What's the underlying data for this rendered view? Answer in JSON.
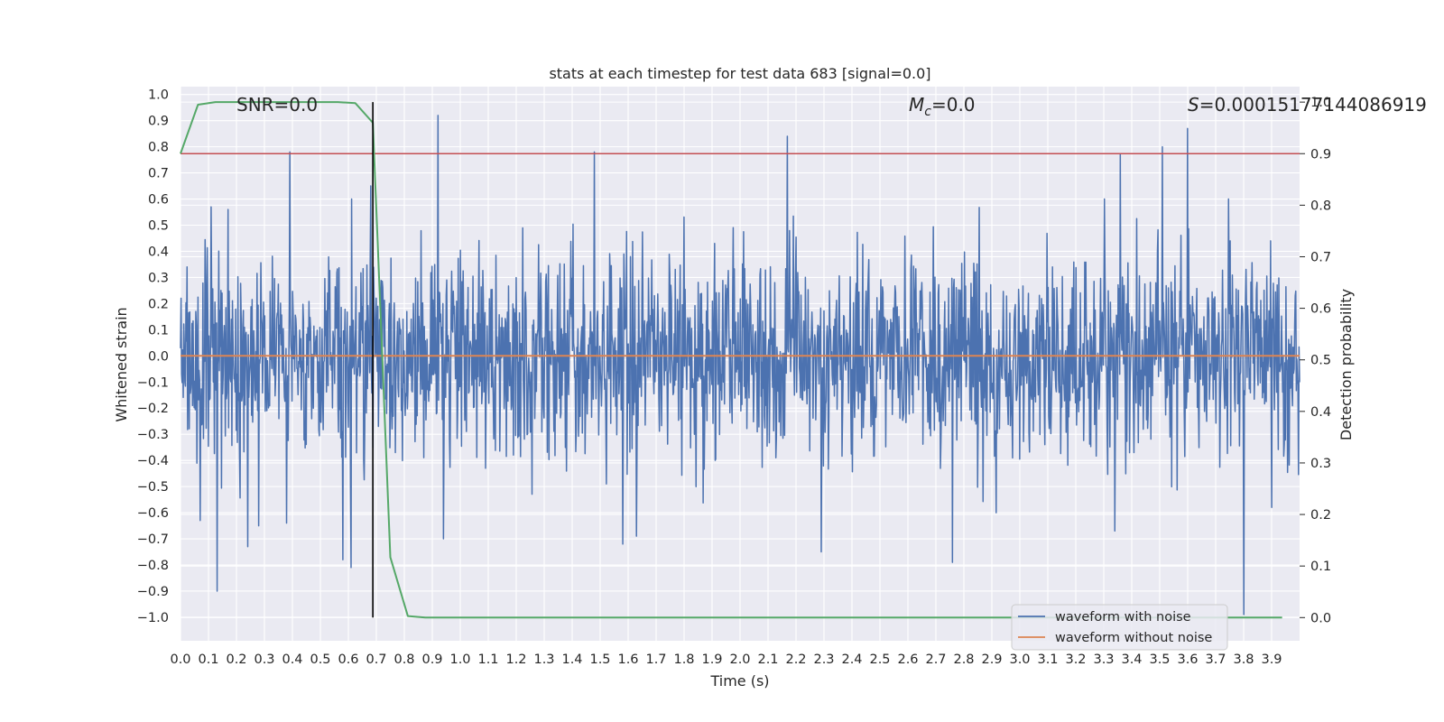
{
  "chart_data": {
    "type": "line",
    "title": "stats at each timestep for test data 683 [signal=0.0]",
    "xlabel": "Time (s)",
    "ylabel": "Whitened strain",
    "y2label": "Detection probability",
    "xlim": [
      0.0,
      4.0
    ],
    "ylim": [
      -1.09,
      1.03
    ],
    "y2lim": [
      -0.045,
      1.03
    ],
    "x_ticks": [
      "0.0",
      "0.1",
      "0.2",
      "0.3",
      "0.4",
      "0.5",
      "0.6",
      "0.7",
      "0.8",
      "0.9",
      "1.0",
      "1.1",
      "1.2",
      "1.3",
      "1.4",
      "1.5",
      "1.6",
      "1.7",
      "1.8",
      "1.9",
      "2.0",
      "2.1",
      "2.2",
      "2.3",
      "2.4",
      "2.5",
      "2.6",
      "2.7",
      "2.8",
      "2.9",
      "3.0",
      "3.1",
      "3.2",
      "3.3",
      "3.4",
      "3.5",
      "3.6",
      "3.7",
      "3.8",
      "3.9"
    ],
    "y_ticks": [
      "1.0",
      "0.9",
      "0.8",
      "0.7",
      "0.6",
      "0.5",
      "0.4",
      "0.3",
      "0.2",
      "0.1",
      "0.0",
      "−0.1",
      "−0.2",
      "−0.3",
      "−0.4",
      "−0.5",
      "−0.6",
      "−0.7",
      "−0.8",
      "−0.9",
      "−1.0"
    ],
    "y2_ticks": [
      "1.0",
      "0.9",
      "0.8",
      "0.7",
      "0.6",
      "0.5",
      "0.4",
      "0.3",
      "0.2",
      "0.1",
      "0.0"
    ],
    "grid": true,
    "legend_position": "lower-right",
    "annotations": {
      "snr": "SNR=0.0",
      "mc_symbol": "M",
      "mc_sub": "c",
      "mc_value": "=0.0",
      "s_symbol": "S",
      "s_value": "=0.00015177144086919"
    },
    "series": [
      {
        "name": "waveform with noise",
        "color": "#4c72b0",
        "axis": "left",
        "noise_std": 0.19,
        "peaks": [
          {
            "x": 0.13,
            "y": -0.9
          },
          {
            "x": 0.07,
            "y": -0.63
          },
          {
            "x": 0.11,
            "y": 0.57
          },
          {
            "x": 0.17,
            "y": 0.56
          },
          {
            "x": 0.24,
            "y": -0.73
          },
          {
            "x": 0.28,
            "y": -0.65
          },
          {
            "x": 0.39,
            "y": 0.78
          },
          {
            "x": 0.38,
            "y": -0.64
          },
          {
            "x": 0.58,
            "y": -0.78
          },
          {
            "x": 0.61,
            "y": -0.81
          },
          {
            "x": 0.68,
            "y": 0.65
          },
          {
            "x": 0.92,
            "y": 0.92
          },
          {
            "x": 0.94,
            "y": -0.7
          },
          {
            "x": 1.48,
            "y": 0.78
          },
          {
            "x": 1.58,
            "y": -0.72
          },
          {
            "x": 1.63,
            "y": -0.69
          },
          {
            "x": 2.17,
            "y": 0.84
          },
          {
            "x": 2.29,
            "y": -0.75
          },
          {
            "x": 2.76,
            "y": -0.79
          },
          {
            "x": 3.36,
            "y": 0.77
          },
          {
            "x": 3.51,
            "y": 0.8
          },
          {
            "x": 3.6,
            "y": 0.87
          },
          {
            "x": 3.8,
            "y": -0.99
          },
          {
            "x": 3.34,
            "y": -0.67
          },
          {
            "x": 3.9,
            "y": -0.58
          }
        ]
      },
      {
        "name": "waveform without noise",
        "color": "#dd8452",
        "axis": "left",
        "x": [
          0.0,
          4.0
        ],
        "y": [
          0.0,
          0.0
        ]
      },
      {
        "name": "detection probability",
        "color": "#55a868",
        "axis": "right",
        "x": [
          0.0,
          0.0625,
          0.125,
          0.1875,
          0.25,
          0.3125,
          0.375,
          0.4375,
          0.5,
          0.5625,
          0.625,
          0.6875,
          0.75,
          0.8125,
          0.875,
          0.9375,
          1.0,
          1.5,
          2.0,
          2.5,
          3.0,
          3.5,
          3.9375
        ],
        "y": [
          0.9,
          0.995,
          1.0,
          1.0,
          1.0,
          1.0,
          1.0,
          1.0,
          1.0,
          1.0,
          0.998,
          0.96,
          0.117,
          0.003,
          0.0,
          0.0,
          0.0,
          0.0,
          0.0,
          0.0,
          0.0,
          0.0,
          0.0
        ]
      }
    ],
    "threshold": {
      "axis": "right",
      "y": 0.9,
      "color": "#c44e52"
    },
    "vline": {
      "x": 0.6875,
      "color": "#000000"
    }
  }
}
